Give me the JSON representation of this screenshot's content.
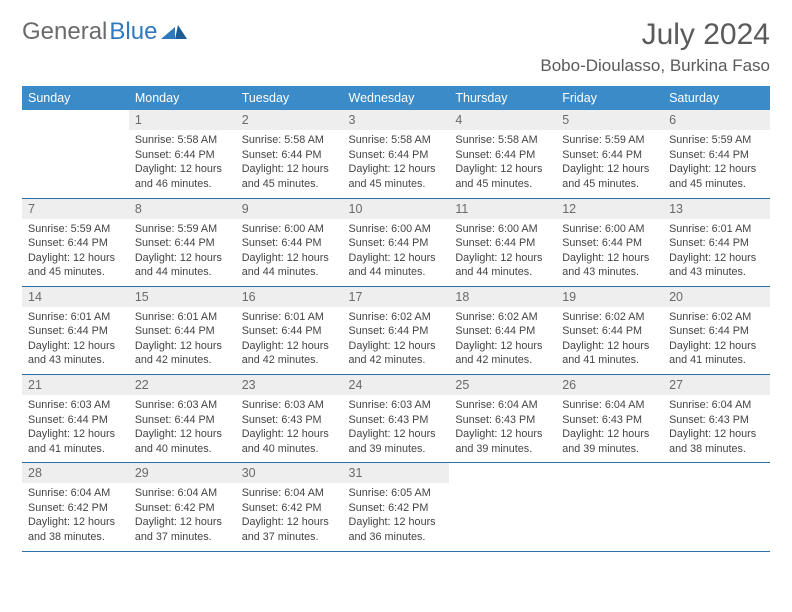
{
  "logo": {
    "text_gray": "General",
    "text_blue": "Blue"
  },
  "title": "July 2024",
  "location": "Bobo-Dioulasso, Burkina Faso",
  "colors": {
    "header_bg": "#3b8bc9",
    "header_fg": "#ffffff",
    "daynum_bg": "#eeeeee",
    "daynum_fg": "#6a6a6a",
    "row_border": "#2f6fa3",
    "logo_gray": "#6b6b6b",
    "logo_blue": "#2f7abf"
  },
  "weekdays": [
    "Sunday",
    "Monday",
    "Tuesday",
    "Wednesday",
    "Thursday",
    "Friday",
    "Saturday"
  ],
  "weeks": [
    [
      null,
      {
        "n": "1",
        "sr": "5:58 AM",
        "ss": "6:44 PM",
        "d1": "12 hours",
        "d2": "46 minutes."
      },
      {
        "n": "2",
        "sr": "5:58 AM",
        "ss": "6:44 PM",
        "d1": "12 hours",
        "d2": "45 minutes."
      },
      {
        "n": "3",
        "sr": "5:58 AM",
        "ss": "6:44 PM",
        "d1": "12 hours",
        "d2": "45 minutes."
      },
      {
        "n": "4",
        "sr": "5:58 AM",
        "ss": "6:44 PM",
        "d1": "12 hours",
        "d2": "45 minutes."
      },
      {
        "n": "5",
        "sr": "5:59 AM",
        "ss": "6:44 PM",
        "d1": "12 hours",
        "d2": "45 minutes."
      },
      {
        "n": "6",
        "sr": "5:59 AM",
        "ss": "6:44 PM",
        "d1": "12 hours",
        "d2": "45 minutes."
      }
    ],
    [
      {
        "n": "7",
        "sr": "5:59 AM",
        "ss": "6:44 PM",
        "d1": "12 hours",
        "d2": "45 minutes."
      },
      {
        "n": "8",
        "sr": "5:59 AM",
        "ss": "6:44 PM",
        "d1": "12 hours",
        "d2": "44 minutes."
      },
      {
        "n": "9",
        "sr": "6:00 AM",
        "ss": "6:44 PM",
        "d1": "12 hours",
        "d2": "44 minutes."
      },
      {
        "n": "10",
        "sr": "6:00 AM",
        "ss": "6:44 PM",
        "d1": "12 hours",
        "d2": "44 minutes."
      },
      {
        "n": "11",
        "sr": "6:00 AM",
        "ss": "6:44 PM",
        "d1": "12 hours",
        "d2": "44 minutes."
      },
      {
        "n": "12",
        "sr": "6:00 AM",
        "ss": "6:44 PM",
        "d1": "12 hours",
        "d2": "43 minutes."
      },
      {
        "n": "13",
        "sr": "6:01 AM",
        "ss": "6:44 PM",
        "d1": "12 hours",
        "d2": "43 minutes."
      }
    ],
    [
      {
        "n": "14",
        "sr": "6:01 AM",
        "ss": "6:44 PM",
        "d1": "12 hours",
        "d2": "43 minutes."
      },
      {
        "n": "15",
        "sr": "6:01 AM",
        "ss": "6:44 PM",
        "d1": "12 hours",
        "d2": "42 minutes."
      },
      {
        "n": "16",
        "sr": "6:01 AM",
        "ss": "6:44 PM",
        "d1": "12 hours",
        "d2": "42 minutes."
      },
      {
        "n": "17",
        "sr": "6:02 AM",
        "ss": "6:44 PM",
        "d1": "12 hours",
        "d2": "42 minutes."
      },
      {
        "n": "18",
        "sr": "6:02 AM",
        "ss": "6:44 PM",
        "d1": "12 hours",
        "d2": "42 minutes."
      },
      {
        "n": "19",
        "sr": "6:02 AM",
        "ss": "6:44 PM",
        "d1": "12 hours",
        "d2": "41 minutes."
      },
      {
        "n": "20",
        "sr": "6:02 AM",
        "ss": "6:44 PM",
        "d1": "12 hours",
        "d2": "41 minutes."
      }
    ],
    [
      {
        "n": "21",
        "sr": "6:03 AM",
        "ss": "6:44 PM",
        "d1": "12 hours",
        "d2": "41 minutes."
      },
      {
        "n": "22",
        "sr": "6:03 AM",
        "ss": "6:44 PM",
        "d1": "12 hours",
        "d2": "40 minutes."
      },
      {
        "n": "23",
        "sr": "6:03 AM",
        "ss": "6:43 PM",
        "d1": "12 hours",
        "d2": "40 minutes."
      },
      {
        "n": "24",
        "sr": "6:03 AM",
        "ss": "6:43 PM",
        "d1": "12 hours",
        "d2": "39 minutes."
      },
      {
        "n": "25",
        "sr": "6:04 AM",
        "ss": "6:43 PM",
        "d1": "12 hours",
        "d2": "39 minutes."
      },
      {
        "n": "26",
        "sr": "6:04 AM",
        "ss": "6:43 PM",
        "d1": "12 hours",
        "d2": "39 minutes."
      },
      {
        "n": "27",
        "sr": "6:04 AM",
        "ss": "6:43 PM",
        "d1": "12 hours",
        "d2": "38 minutes."
      }
    ],
    [
      {
        "n": "28",
        "sr": "6:04 AM",
        "ss": "6:42 PM",
        "d1": "12 hours",
        "d2": "38 minutes."
      },
      {
        "n": "29",
        "sr": "6:04 AM",
        "ss": "6:42 PM",
        "d1": "12 hours",
        "d2": "37 minutes."
      },
      {
        "n": "30",
        "sr": "6:04 AM",
        "ss": "6:42 PM",
        "d1": "12 hours",
        "d2": "37 minutes."
      },
      {
        "n": "31",
        "sr": "6:05 AM",
        "ss": "6:42 PM",
        "d1": "12 hours",
        "d2": "36 minutes."
      },
      null,
      null,
      null
    ]
  ],
  "labels": {
    "sunrise": "Sunrise:",
    "sunset": "Sunset:",
    "daylight": "Daylight:",
    "and": "and"
  }
}
